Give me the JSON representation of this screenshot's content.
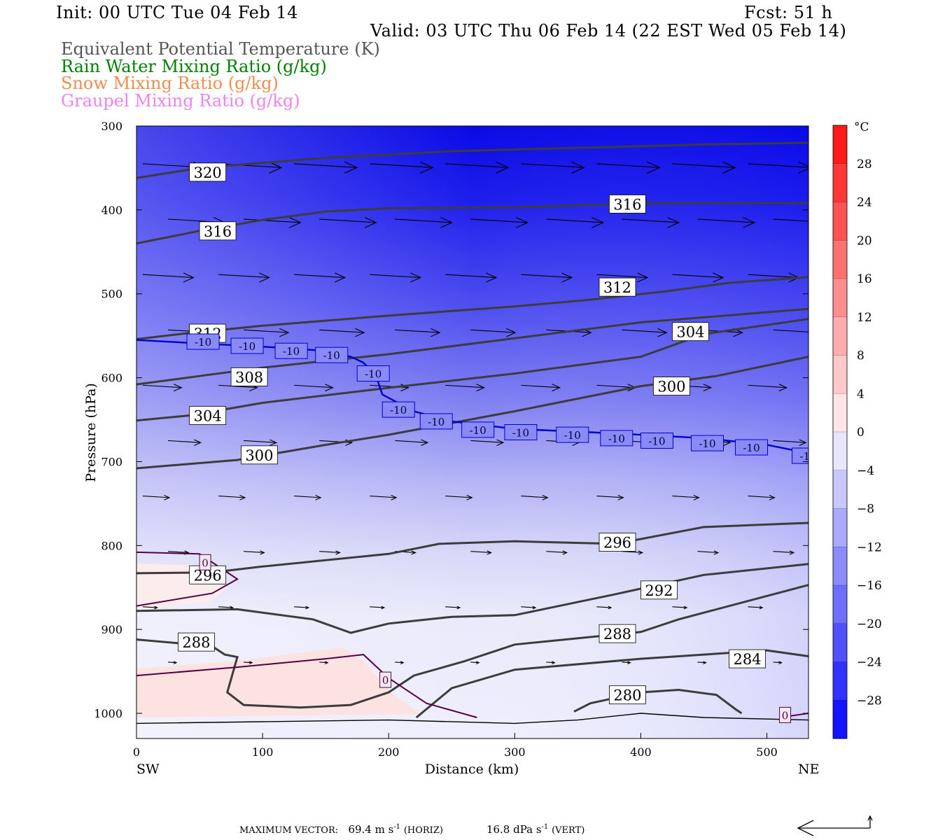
{
  "header": {
    "init": "Init: 00 UTC Tue 04 Feb 14",
    "fcst": "Fcst:   51 h",
    "valid": "Valid: 03 UTC Thu 06 Feb 14 (22 EST Wed 05 Feb 14)"
  },
  "legend": [
    {
      "text": "Equivalent Potential Temperature (K)",
      "color": "#555555"
    },
    {
      "text": "Rain Water Mixing Ratio (g/kg)",
      "color": "#008000"
    },
    {
      "text": "Snow Mixing Ratio (g/kg)",
      "color": "#f08c50"
    },
    {
      "text": "Graupel Mixing Ratio (g/kg)",
      "color": "#ee82ee"
    }
  ],
  "footer": {
    "label": "MAXIMUM VECTOR:",
    "horiz_value": "69.4 m s",
    "horiz_exp": "-1",
    "horiz_unit": "(HORIZ)",
    "vert_value": "16.8 dPa s",
    "vert_exp": "-1",
    "vert_unit": "(VERT)"
  },
  "chart_data": {
    "type": "contour-cross-section",
    "xlabel": "Distance (km)",
    "ylabel": "Pressure (hPa)",
    "xlim": [
      0,
      533
    ],
    "ylim": [
      1030,
      300
    ],
    "x_ticks": [
      0,
      100,
      200,
      300,
      400,
      500
    ],
    "y_ticks": [
      300,
      400,
      500,
      600,
      700,
      800,
      900,
      1000
    ],
    "x_end_labels": {
      "left": "SW",
      "right": "NE"
    },
    "colorbar": {
      "unit": "°C",
      "range": [
        -32,
        32
      ],
      "step": 4,
      "labels": [
        28,
        24,
        20,
        16,
        12,
        8,
        4,
        0,
        -4,
        -8,
        -12,
        -16,
        -20,
        -24,
        -28
      ]
    },
    "theta_e_contours": [
      {
        "value": 320,
        "label": "320",
        "points": [
          [
            0,
            362
          ],
          [
            50,
            350
          ],
          [
            150,
            338
          ],
          [
            250,
            330
          ],
          [
            350,
            326
          ],
          [
            450,
            322
          ],
          [
            533,
            320
          ]
        ],
        "labels_at": [
          [
            42,
            355
          ]
        ]
      },
      {
        "value": 316,
        "label": "316",
        "points": [
          [
            0,
            440
          ],
          [
            50,
            425
          ],
          [
            100,
            412
          ],
          [
            150,
            402
          ],
          [
            200,
            398
          ],
          [
            300,
            397
          ],
          [
            400,
            392
          ],
          [
            533,
            392
          ]
        ],
        "labels_at": [
          [
            50,
            425
          ],
          [
            375,
            393
          ]
        ]
      },
      {
        "value": 312,
        "label": "312",
        "points": [
          [
            0,
            554
          ],
          [
            40,
            547
          ],
          [
            100,
            538
          ],
          [
            200,
            526
          ],
          [
            300,
            515
          ],
          [
            360,
            507
          ],
          [
            420,
            497
          ],
          [
            470,
            487
          ],
          [
            533,
            480
          ]
        ],
        "labels_at": [
          [
            42,
            547
          ],
          [
            367,
            492
          ]
        ]
      },
      {
        "value": 308,
        "label": "308",
        "points": [
          [
            0,
            608
          ],
          [
            50,
            598
          ],
          [
            100,
            588
          ],
          [
            200,
            572
          ],
          [
            300,
            553
          ],
          [
            400,
            534
          ],
          [
            533,
            518
          ]
        ],
        "labels_at": [
          [
            75,
            599
          ]
        ]
      },
      {
        "value": 304,
        "label": "304",
        "points": [
          [
            0,
            651
          ],
          [
            42,
            645
          ],
          [
            100,
            630
          ],
          [
            200,
            612
          ],
          [
            300,
            595
          ],
          [
            400,
            575
          ],
          [
            450,
            548
          ],
          [
            533,
            530
          ]
        ],
        "labels_at": [
          [
            42,
            645
          ],
          [
            425,
            545
          ]
        ]
      },
      {
        "value": 300,
        "label": "300",
        "points": [
          [
            0,
            708
          ],
          [
            80,
            698
          ],
          [
            150,
            680
          ],
          [
            200,
            668
          ],
          [
            300,
            640
          ],
          [
            400,
            610
          ],
          [
            460,
            598
          ],
          [
            533,
            575
          ]
        ],
        "labels_at": [
          [
            83,
            692
          ],
          [
            410,
            610
          ]
        ]
      },
      {
        "value": 296,
        "label": "296",
        "points": [
          [
            0,
            833
          ],
          [
            60,
            832
          ],
          [
            100,
            825
          ],
          [
            200,
            810
          ],
          [
            240,
            798
          ],
          [
            300,
            795
          ],
          [
            380,
            798
          ],
          [
            450,
            778
          ],
          [
            533,
            773
          ]
        ],
        "labels_at": [
          [
            42,
            835
          ],
          [
            367,
            796
          ]
        ]
      },
      {
        "value": 292,
        "label": "292",
        "points": [
          [
            0,
            878
          ],
          [
            80,
            876
          ],
          [
            140,
            888
          ],
          [
            170,
            904
          ],
          [
            200,
            893
          ],
          [
            250,
            885
          ],
          [
            300,
            883
          ],
          [
            380,
            858
          ],
          [
            450,
            835
          ],
          [
            533,
            822
          ]
        ],
        "labels_at": [
          [
            400,
            853
          ]
        ]
      },
      {
        "value": 288,
        "label": "288",
        "points": [
          [
            0,
            912
          ],
          [
            60,
            920
          ],
          [
            70,
            930
          ],
          [
            80,
            933
          ],
          [
            72,
            975
          ],
          [
            85,
            990
          ],
          [
            130,
            993
          ],
          [
            170,
            990
          ],
          [
            200,
            975
          ],
          [
            220,
            955
          ],
          [
            260,
            938
          ],
          [
            300,
            918
          ],
          [
            400,
            903
          ],
          [
            430,
            888
          ],
          [
            533,
            847
          ]
        ],
        "labels_at": [
          [
            33,
            915
          ],
          [
            367,
            905
          ]
        ]
      },
      {
        "value": 284,
        "label": "284",
        "points": [
          [
            222,
            1005
          ],
          [
            250,
            970
          ],
          [
            300,
            948
          ],
          [
            400,
            935
          ],
          [
            500,
            925
          ],
          [
            533,
            932
          ]
        ],
        "labels_at": [
          [
            470,
            935
          ]
        ]
      },
      {
        "value": 280,
        "label": "280",
        "points": [
          [
            347,
            998
          ],
          [
            360,
            988
          ],
          [
            400,
            975
          ],
          [
            430,
            972
          ],
          [
            460,
            978
          ],
          [
            475,
            995
          ],
          [
            480,
            1000
          ]
        ],
        "labels_at": [
          [
            375,
            978
          ]
        ]
      }
    ],
    "temperature_contours": [
      {
        "value": -10,
        "label": "-10",
        "color": "#0000cc",
        "points": [
          [
            0,
            555
          ],
          [
            60,
            560
          ],
          [
            100,
            563
          ],
          [
            150,
            568
          ],
          [
            170,
            575
          ],
          [
            180,
            582
          ],
          [
            190,
            598
          ],
          [
            195,
            620
          ],
          [
            220,
            640
          ],
          [
            250,
            652
          ],
          [
            300,
            661
          ],
          [
            360,
            665
          ],
          [
            400,
            668
          ],
          [
            450,
            672
          ],
          [
            500,
            680
          ],
          [
            533,
            690
          ]
        ],
        "labels_at": [
          [
            40,
            557
          ],
          [
            75,
            562
          ],
          [
            110,
            568
          ],
          [
            142,
            573
          ],
          [
            175,
            595
          ],
          [
            195,
            638
          ],
          [
            225,
            652
          ],
          [
            258,
            662
          ],
          [
            292,
            665
          ],
          [
            333,
            668
          ],
          [
            368,
            672
          ],
          [
            400,
            675
          ],
          [
            440,
            678
          ],
          [
            475,
            683
          ],
          [
            520,
            693
          ]
        ]
      },
      {
        "value": 0,
        "label": "0",
        "color": "#550044",
        "points": [
          [
            0,
            808
          ],
          [
            50,
            810
          ],
          [
            80,
            840
          ],
          [
            60,
            857
          ],
          [
            0,
            872
          ]
        ],
        "labels_at": [
          [
            50,
            820
          ]
        ]
      },
      {
        "value": 0,
        "label": "0",
        "color": "#550044",
        "points": [
          [
            0,
            955
          ],
          [
            80,
            945
          ],
          [
            150,
            935
          ],
          [
            180,
            930
          ],
          [
            200,
            958
          ],
          [
            230,
            988
          ],
          [
            270,
            1005
          ]
        ],
        "labels_at": [
          [
            193,
            960
          ]
        ]
      },
      {
        "value": 0,
        "label": "0",
        "color": "#550044",
        "points": [
          [
            510,
            1005
          ],
          [
            533,
            1000
          ]
        ],
        "labels_at": [
          [
            510,
            1002
          ]
        ]
      }
    ],
    "ground_surface": [
      [
        0,
        1012
      ],
      [
        100,
        1010
      ],
      [
        200,
        1008
      ],
      [
        300,
        1012
      ],
      [
        350,
        1008
      ],
      [
        400,
        1000
      ],
      [
        450,
        1005
      ],
      [
        533,
        1008
      ]
    ]
  }
}
